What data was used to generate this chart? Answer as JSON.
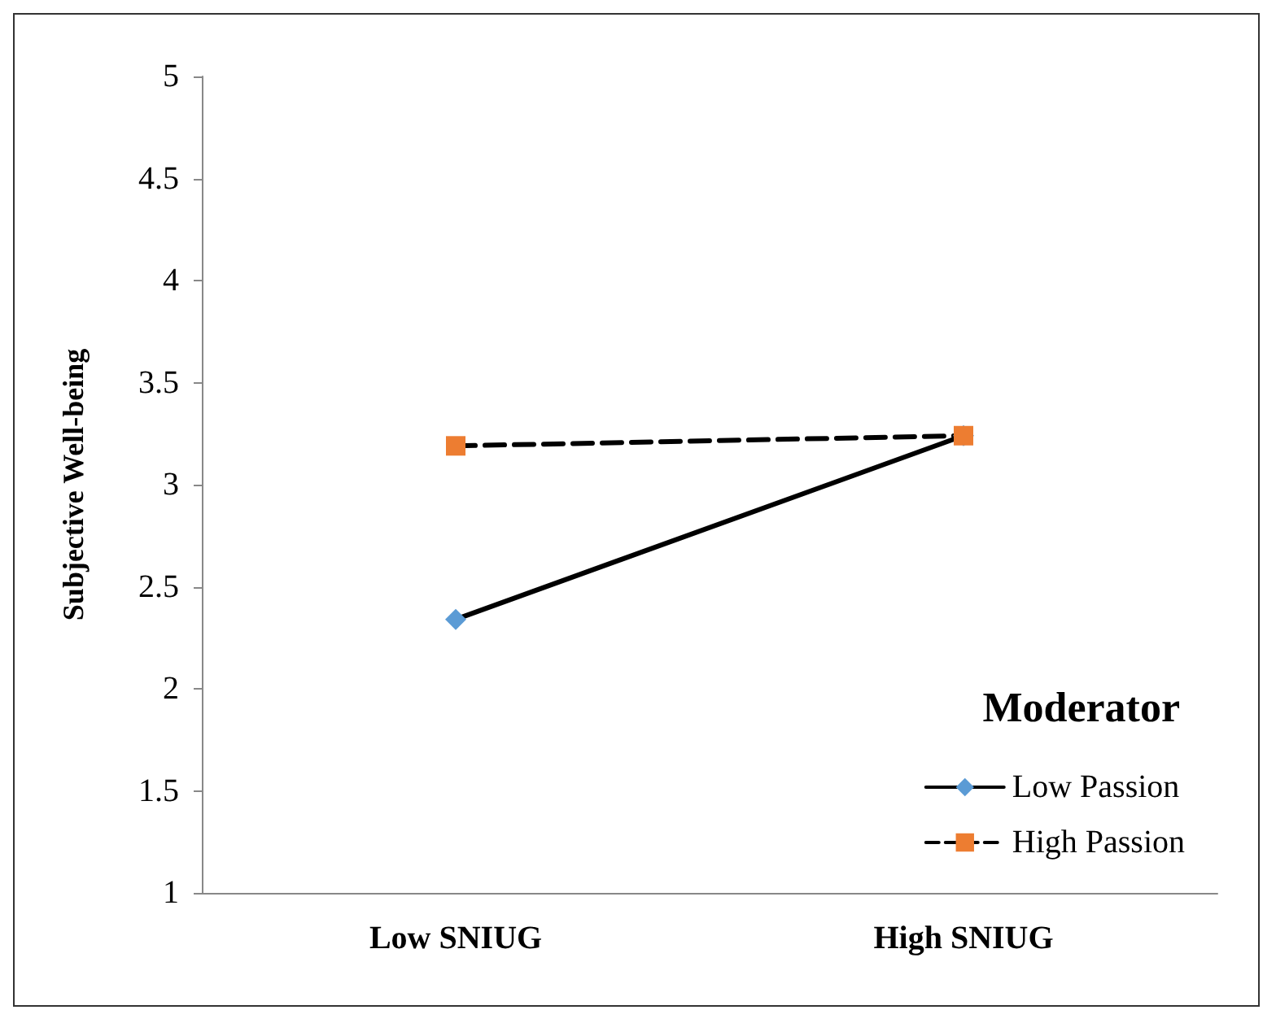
{
  "chart_data": {
    "type": "line",
    "ylabel": "Subjective Well-being",
    "legend_title": "Moderator",
    "categories": [
      "Low SNIUG",
      "High SNIUG"
    ],
    "series": [
      {
        "name": "Low Passion",
        "color": "#5b9bd5",
        "marker": "diamond",
        "line_style": "solid",
        "values": [
          2.34,
          3.24
        ]
      },
      {
        "name": "High Passion",
        "color": "#ed7d31",
        "marker": "square",
        "line_style": "dashed",
        "values": [
          3.19,
          3.24
        ]
      }
    ],
    "ylim": [
      1,
      5
    ],
    "yticks": [
      1,
      1.5,
      2,
      2.5,
      3,
      3.5,
      4,
      4.5,
      5
    ],
    "grid": false,
    "legend": "bottom right"
  }
}
